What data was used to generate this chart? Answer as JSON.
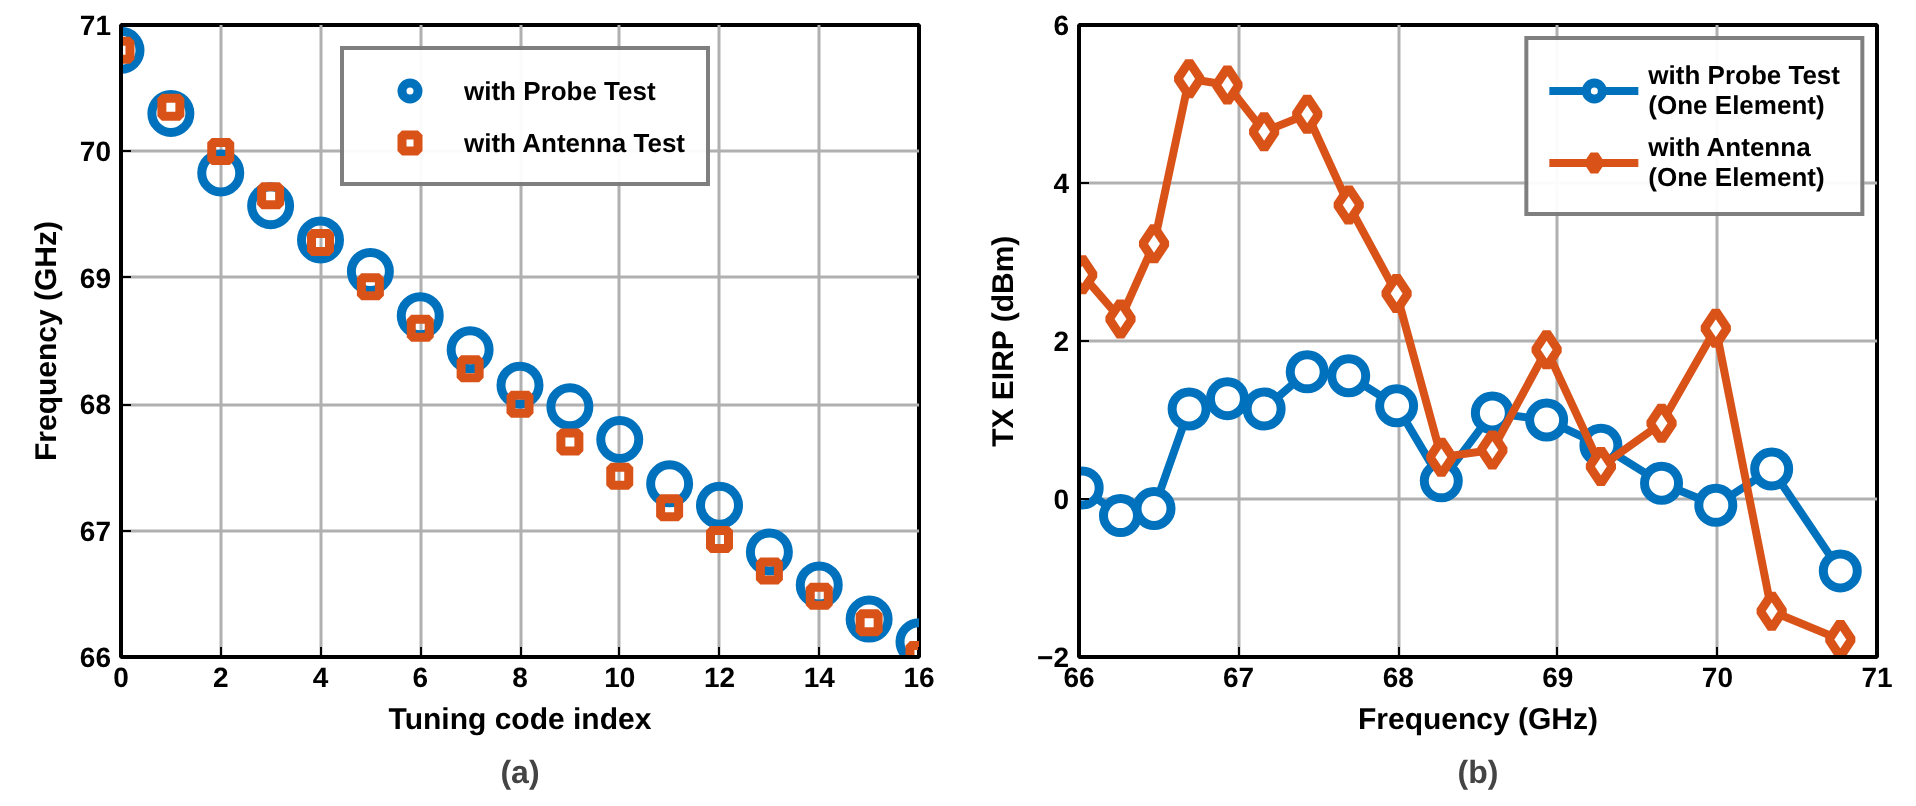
{
  "chart_data": [
    {
      "type": "scatter",
      "xlabel": "Tuning code index",
      "ylabel": "Frequency (GHz)",
      "annotations": [
        "(a)"
      ],
      "xlim": [
        0,
        16
      ],
      "xticks": [
        0,
        2,
        4,
        6,
        8,
        10,
        12,
        14,
        16
      ],
      "ylim": [
        66,
        71
      ],
      "yticks": [
        66,
        67,
        68,
        69,
        70,
        71
      ],
      "grid": true,
      "legend": "top",
      "x": [
        0,
        1,
        2,
        3,
        4,
        5,
        6,
        7,
        8,
        9,
        10,
        11,
        12,
        13,
        14,
        15,
        16
      ],
      "series": [
        {
          "name": "with Probe Test",
          "color": "#0072bd",
          "marker": "circle",
          "values": [
            70.8,
            70.3,
            69.83,
            69.57,
            69.3,
            69.05,
            68.7,
            68.43,
            68.15,
            67.98,
            67.72,
            67.37,
            67.2,
            66.83,
            66.57,
            66.3,
            66.12
          ]
        },
        {
          "name": "with Antenna Test",
          "color": "#d95319",
          "marker": "square",
          "values": [
            70.8,
            70.35,
            70.0,
            69.65,
            69.28,
            68.93,
            68.6,
            68.28,
            68.0,
            67.7,
            67.43,
            67.18,
            66.93,
            66.68,
            66.48,
            66.27,
            66.02
          ]
        }
      ]
    },
    {
      "type": "line",
      "xlabel": "Frequency (GHz)",
      "ylabel": "TX EIRP (dBm)",
      "annotations": [
        "(b)"
      ],
      "xlim": [
        66,
        71
      ],
      "xticks": [
        66,
        67,
        68,
        69,
        70,
        71
      ],
      "ylim": [
        -2,
        6
      ],
      "yticks": [
        -2,
        0,
        2,
        4,
        6
      ],
      "grid": true,
      "legend": "top right",
      "line_style": "solid",
      "x": [
        66.02,
        66.26,
        66.47,
        66.69,
        66.93,
        67.16,
        67.43,
        67.69,
        67.99,
        68.27,
        68.59,
        68.93,
        69.27,
        69.65,
        69.99,
        70.34,
        70.77
      ],
      "series": [
        {
          "name": "with Probe Test\n(One Element)",
          "color": "#0072bd",
          "marker": "circle",
          "values": [
            0.14,
            -0.21,
            -0.12,
            1.14,
            1.27,
            1.14,
            1.61,
            1.56,
            1.18,
            0.23,
            1.09,
            1.0,
            0.68,
            0.2,
            -0.08,
            0.38,
            -0.91
          ]
        },
        {
          "name": "with Antenna\n(One Element)",
          "color": "#d95319",
          "marker": "diamond",
          "values": [
            2.84,
            2.28,
            3.23,
            5.32,
            5.24,
            4.65,
            4.87,
            3.72,
            2.6,
            0.53,
            0.62,
            1.89,
            0.41,
            0.96,
            2.16,
            -1.42,
            -1.78
          ]
        }
      ]
    }
  ]
}
